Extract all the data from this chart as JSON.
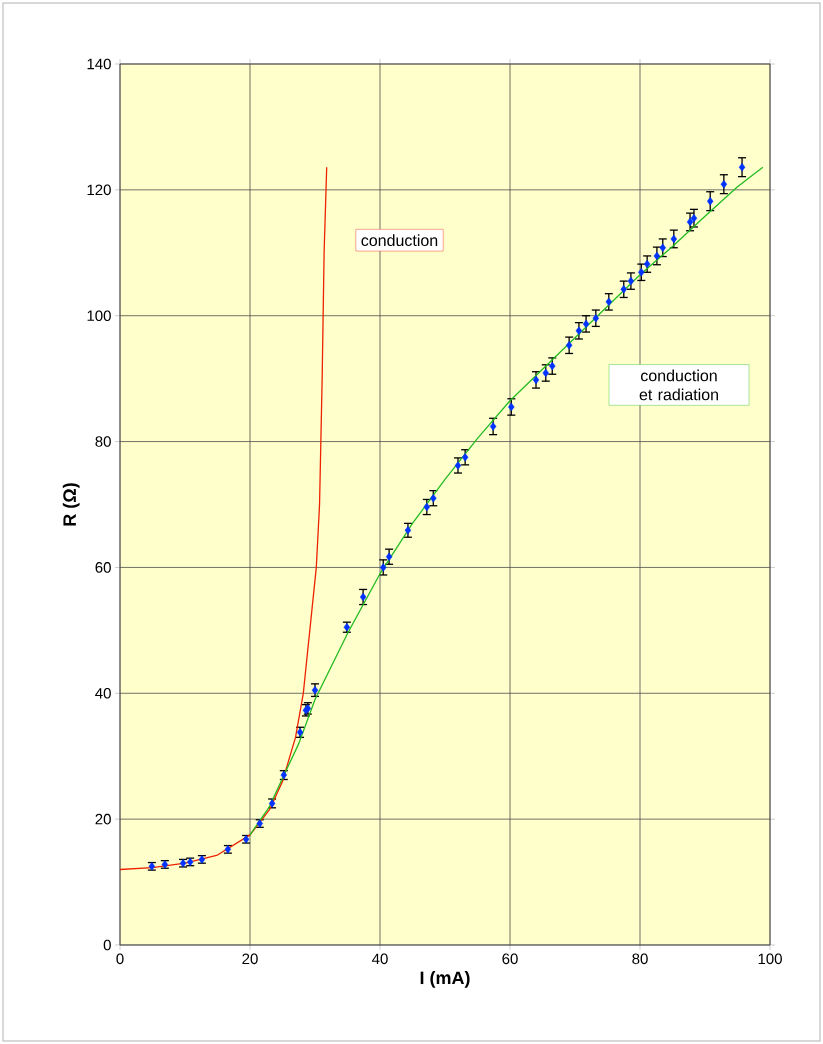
{
  "chart_data": {
    "type": "scatter",
    "xlabel": "I  (mA)",
    "ylabel": "R  (Ω)",
    "xlim": [
      0,
      100
    ],
    "ylim": [
      0,
      140
    ],
    "xticks": [
      0,
      20,
      40,
      60,
      80,
      100
    ],
    "yticks": [
      0,
      20,
      40,
      60,
      80,
      100,
      120,
      140
    ],
    "grid": true,
    "series": [
      {
        "color": "#0033ff",
        "marker": "diamond",
        "x": [
          4.9,
          6.9,
          9.7,
          10.8,
          12.6,
          16.6,
          19.4,
          21.5,
          23.4,
          25.2,
          27.7,
          28.6,
          28.9,
          30.0,
          34.9,
          37.4,
          40.5,
          41.4,
          44.3,
          47.2,
          48.2,
          52.0,
          53.1,
          57.4,
          60.2,
          64.0,
          65.5,
          66.5,
          69.1,
          70.6,
          71.7,
          73.2,
          75.2,
          77.5,
          78.6,
          80.2,
          81.1,
          82.6,
          83.5,
          85.2,
          87.7,
          88.3,
          90.8,
          92.9,
          95.7
        ],
        "values": [
          12.5,
          12.8,
          13.0,
          13.2,
          13.6,
          15.2,
          16.8,
          19.3,
          22.5,
          27.0,
          33.8,
          37.3,
          37.6,
          40.5,
          50.5,
          55.3,
          60.0,
          61.7,
          65.9,
          69.6,
          71.0,
          76.2,
          77.5,
          82.4,
          85.5,
          89.8,
          90.9,
          92.0,
          95.3,
          97.6,
          98.7,
          99.6,
          102.2,
          104.2,
          105.5,
          106.9,
          108.2,
          109.5,
          110.8,
          112.2,
          114.9,
          115.5,
          118.2,
          120.9,
          123.6
        ],
        "errors": [
          0.6,
          0.6,
          0.6,
          0.6,
          0.6,
          0.6,
          0.6,
          0.6,
          0.7,
          0.7,
          0.8,
          0.9,
          0.9,
          1.0,
          0.8,
          1.2,
          1.2,
          1.2,
          1.1,
          1.2,
          1.2,
          1.2,
          1.2,
          1.3,
          1.3,
          1.3,
          1.3,
          1.3,
          1.3,
          1.3,
          1.3,
          1.3,
          1.3,
          1.3,
          1.3,
          1.3,
          1.3,
          1.4,
          1.4,
          1.4,
          1.4,
          1.4,
          1.5,
          1.5,
          1.5
        ]
      },
      {
        "type": "line",
        "name": "conduction",
        "color": "#ee2200",
        "x": [
          0,
          5,
          10,
          15,
          20,
          23,
          25,
          27,
          28.2,
          29.2,
          30.2,
          30.7,
          31.1,
          31.4,
          31.8
        ],
        "values": [
          12,
          12.3,
          13,
          14.3,
          17.5,
          21.5,
          26,
          33,
          40,
          50,
          60,
          70,
          90,
          110,
          123.6
        ]
      },
      {
        "type": "line",
        "name": "conduction et radiation",
        "color": "#22bb22",
        "x": [
          20,
          23,
          25,
          27.5,
          30,
          35,
          40,
          45,
          50,
          55,
          60,
          65,
          70,
          75,
          80,
          85,
          90,
          95,
          98.9
        ],
        "values": [
          17.5,
          22,
          26.5,
          32,
          39,
          49.5,
          59,
          67,
          74,
          80.5,
          86.5,
          91.5,
          96.5,
          101.5,
          106.5,
          111,
          115.8,
          120.5,
          123.6
        ]
      }
    ]
  }
}
